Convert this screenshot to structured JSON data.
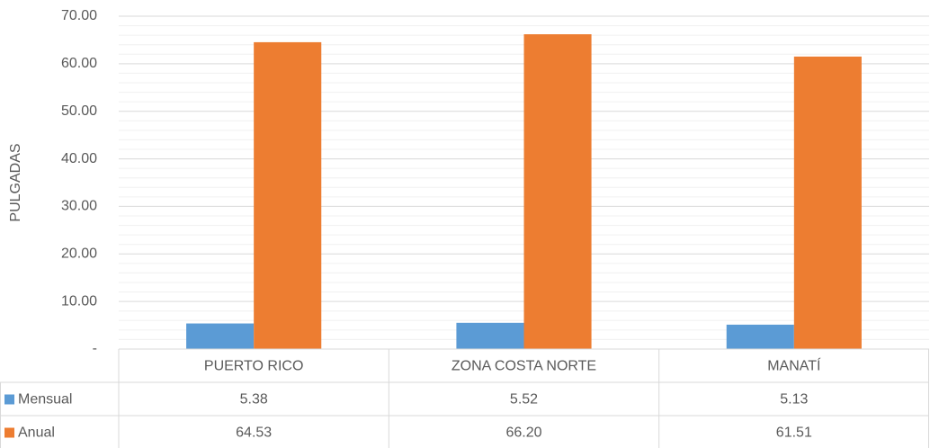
{
  "chart_data": {
    "type": "bar",
    "y_axis_label": "PULGADAS",
    "categories": [
      "PUERTO RICO",
      "ZONA COSTA NORTE",
      "MANATÍ"
    ],
    "series": [
      {
        "name": "Mensual",
        "color": "#5b9bd5",
        "values": [
          5.38,
          5.52,
          5.13
        ],
        "value_labels": [
          "5.38",
          "5.52",
          "5.13"
        ]
      },
      {
        "name": "Anual",
        "color": "#ed7d31",
        "values": [
          64.53,
          66.2,
          61.51
        ],
        "value_labels": [
          "64.53",
          "66.20",
          "61.51"
        ]
      }
    ],
    "ylim": [
      0,
      70
    ],
    "yticks": [
      {
        "value": 0,
        "label": "-"
      },
      {
        "value": 10,
        "label": "10.00"
      },
      {
        "value": 20,
        "label": "20.00"
      },
      {
        "value": 30,
        "label": "30.00"
      },
      {
        "value": 40,
        "label": "40.00"
      },
      {
        "value": 50,
        "label": "50.00"
      },
      {
        "value": 60,
        "label": "60.00"
      },
      {
        "value": 70,
        "label": "70.00"
      }
    ],
    "grid": true,
    "minor_grid": true,
    "data_table": true
  }
}
